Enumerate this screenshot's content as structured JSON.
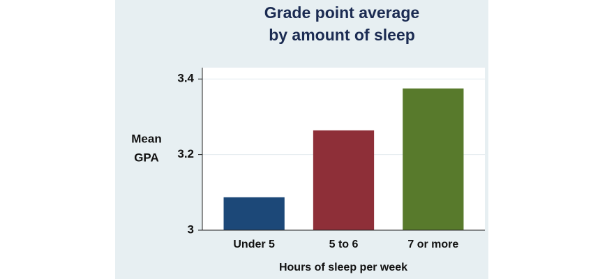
{
  "chart_data": {
    "type": "bar",
    "title": [
      "Grade point average",
      "by amount of sleep"
    ],
    "ylabel": [
      "Mean",
      "GPA"
    ],
    "xlabel": "Hours of sleep per week",
    "categories": [
      "Under 5",
      "5 to 6",
      "7 or more"
    ],
    "values": [
      3.087,
      3.264,
      3.375
    ],
    "colors": [
      "#1c4878",
      "#8e2f38",
      "#587a2c"
    ],
    "ylim": [
      3,
      3.43
    ],
    "yticks": [
      3,
      3.2,
      3.4
    ],
    "grid": true
  }
}
